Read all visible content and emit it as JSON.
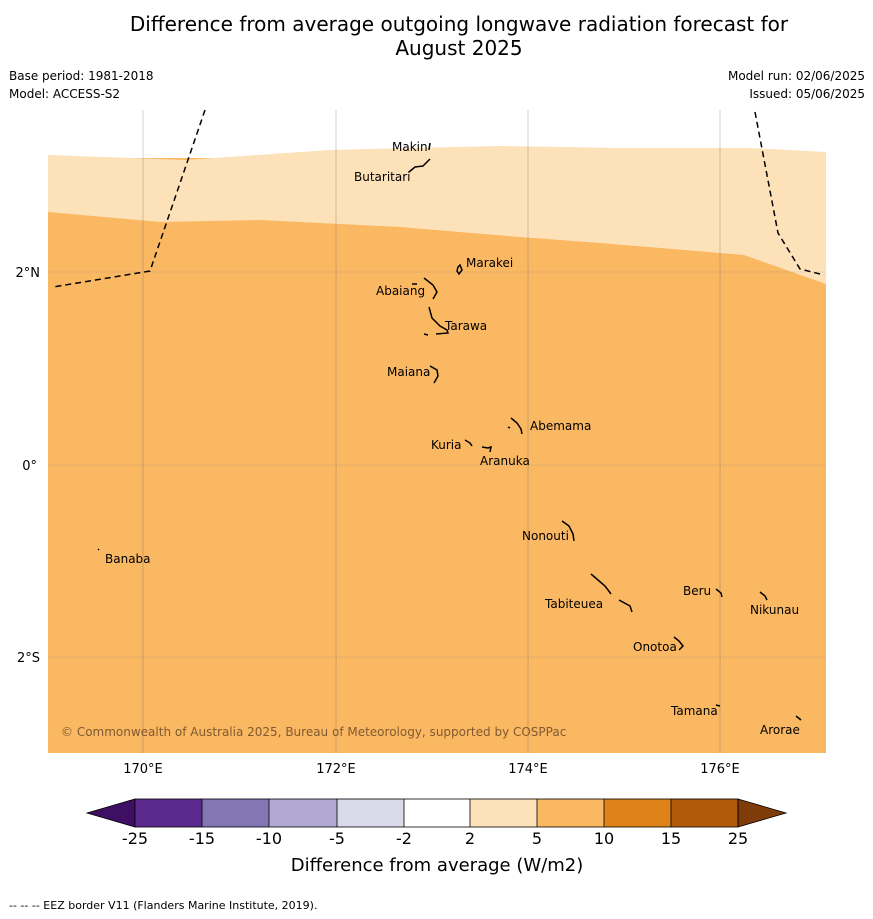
{
  "title": {
    "line1": "Difference from average outgoing longwave radiation forecast for",
    "line2": "August 2025"
  },
  "meta": {
    "base_period": "Base period: 1981-2018",
    "model": "Model: ACCESS-S2",
    "model_run": "Model run: 02/06/2025",
    "issued": "Issued: 05/06/2025"
  },
  "map": {
    "lat_labels": [
      "2°N",
      "0°",
      "2°S"
    ],
    "lon_labels": [
      "170°E",
      "172°E",
      "174°E",
      "176°E"
    ],
    "copyright": "© Commonwealth of Australia 2025, Bureau of Meteorology, supported by COSPPac",
    "islands": [
      {
        "name": "Makin"
      },
      {
        "name": "Butaritari"
      },
      {
        "name": "Marakei"
      },
      {
        "name": "Abaiang"
      },
      {
        "name": "Tarawa"
      },
      {
        "name": "Maiana"
      },
      {
        "name": "Abemama"
      },
      {
        "name": "Kuria"
      },
      {
        "name": "Aranuka"
      },
      {
        "name": "Nonouti"
      },
      {
        "name": "Banaba"
      },
      {
        "name": "Beru"
      },
      {
        "name": "Nikunau"
      },
      {
        "name": "Tabiteuea"
      },
      {
        "name": "Onotoa"
      },
      {
        "name": "Tamana"
      },
      {
        "name": "Arorae"
      }
    ],
    "fill_categories": [
      {
        "range": "2 to 5",
        "color": "#fde1b8"
      },
      {
        "range": "5 to 10",
        "color": "#fbb863"
      }
    ]
  },
  "colorbar": {
    "label": "Difference from average (W/m2)",
    "ticks": [
      "-25",
      "-15",
      "-10",
      "-5",
      "-2",
      "2",
      "5",
      "10",
      "15",
      "25"
    ],
    "colors": [
      "#3f0f63",
      "#5c2a8f",
      "#8475b3",
      "#b1a9d3",
      "#d9d9ea",
      "#ffffff",
      "#fde1b8",
      "#fbb863",
      "#e0821a",
      "#b15a09",
      "#7f3b08"
    ]
  },
  "footnote": "--  --  -- EEZ border V11 (Flanders Marine Institute, 2019)."
}
